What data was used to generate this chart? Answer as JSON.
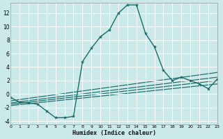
{
  "xlabel": "Humidex (Indice chaleur)",
  "bg_color": "#cce9e9",
  "grid_color": "#ffffff",
  "line_color": "#1a6b6b",
  "xlim": [
    0,
    23
  ],
  "ylim": [
    -4.5,
    13.5
  ],
  "xticks": [
    0,
    1,
    2,
    3,
    4,
    5,
    6,
    7,
    8,
    9,
    10,
    11,
    12,
    13,
    14,
    15,
    16,
    17,
    18,
    19,
    20,
    21,
    22,
    23
  ],
  "yticks": [
    -4,
    -2,
    0,
    2,
    4,
    6,
    8,
    10,
    12
  ],
  "main_x": [
    0,
    1,
    2,
    3,
    4,
    5,
    6,
    7,
    8,
    9,
    10,
    11,
    12,
    13,
    14,
    15,
    16,
    17,
    18,
    19,
    20,
    21,
    22,
    23
  ],
  "main_y": [
    -0.5,
    -1.2,
    -1.3,
    -1.5,
    -2.5,
    -3.5,
    -3.5,
    -3.3,
    4.8,
    6.8,
    8.5,
    9.5,
    12.0,
    13.2,
    13.2,
    9.0,
    7.0,
    3.5,
    2.0,
    2.5,
    2.0,
    1.5,
    0.8,
    2.2
  ],
  "diag_lines": [
    {
      "x0": 0,
      "x1": 23,
      "y0": -1.0,
      "y1": 3.2
    },
    {
      "x0": 0,
      "x1": 23,
      "y0": -1.3,
      "y1": 2.5
    },
    {
      "x0": 0,
      "x1": 23,
      "y0": -1.5,
      "y1": 2.0
    },
    {
      "x0": 0,
      "x1": 23,
      "y0": -1.7,
      "y1": 1.5
    }
  ]
}
